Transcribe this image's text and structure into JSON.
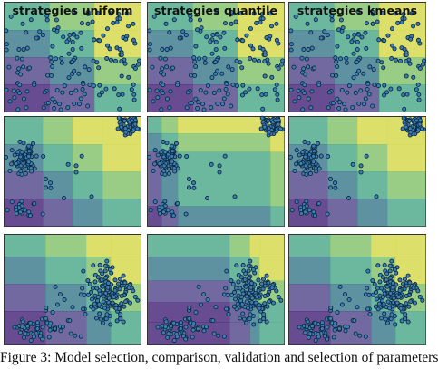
{
  "caption": "Figure 3: Model selection, comparison, validation and selection of parameters",
  "colors": {
    "grid": [
      "#47257a",
      "#54488c",
      "#3c7a8c",
      "#4aa889",
      "#82c26a",
      "#d6d84a"
    ],
    "point_fill": "#3b7fb6",
    "point_stroke": "#0f2a3f"
  },
  "columns": [
    {
      "title": "strategies uniform"
    },
    {
      "title": "strategies quantile"
    },
    {
      "title": "strategies kmeans"
    }
  ]
}
